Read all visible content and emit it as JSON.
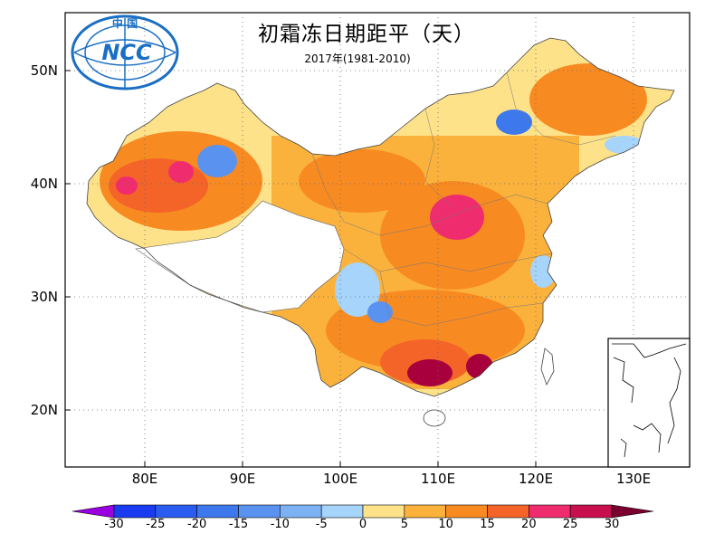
{
  "title": "初霜冻日期距平（天）",
  "subtitle": "2017年(1981-2010)",
  "logo": {
    "text_top": "中 国",
    "text_main": "NCC",
    "color": "#1a6fc4"
  },
  "axes": {
    "lat_labels": [
      "50N",
      "40N",
      "30N",
      "20N"
    ],
    "lon_labels": [
      "80E",
      "90E",
      "100E",
      "110E",
      "120E",
      "130E"
    ]
  },
  "colorbar": {
    "labels": [
      "-30",
      "-25",
      "-20",
      "-15",
      "-10",
      "-5",
      "0",
      "5",
      "10",
      "15",
      "20",
      "25",
      "30"
    ],
    "colors": [
      "#1a3cf0",
      "#2a5cf0",
      "#3d78ec",
      "#5a92f0",
      "#7cb2f4",
      "#a6d4fa",
      "#fde28a",
      "#fbb23c",
      "#f88a22",
      "#f46428",
      "#ef2d6e",
      "#c8104e"
    ],
    "under_color": "#9b00e0",
    "over_color": "#7a0030"
  },
  "map_colors": {
    "neutral": "#fde28a",
    "warm": "#fbb23c",
    "orange": "#f88a22",
    "red": "#f46428",
    "pink": "#ef2d6e",
    "dark": "#a8003c",
    "lightblue": "#a6d4fa",
    "blue": "#5a92f0",
    "deepblue": "#3d78ec"
  }
}
